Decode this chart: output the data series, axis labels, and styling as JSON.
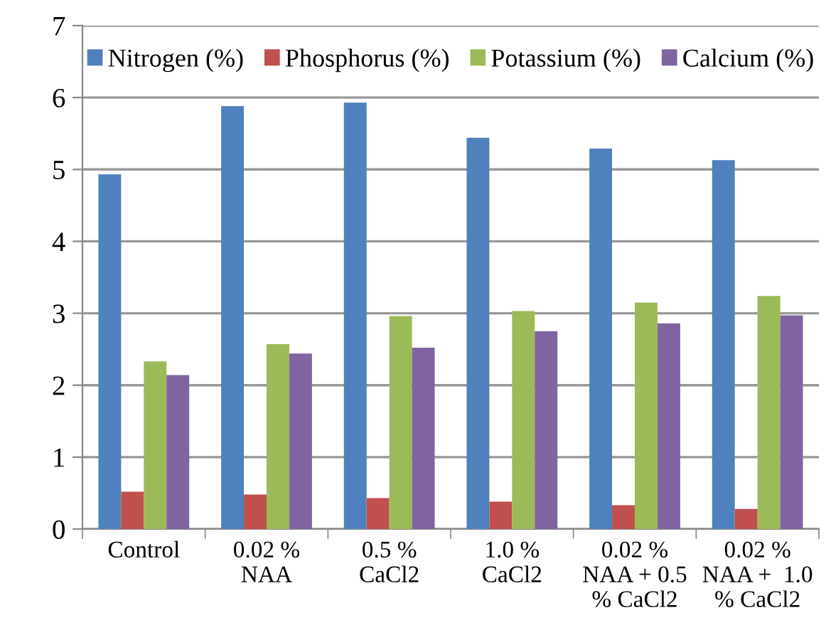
{
  "chart_data": {
    "type": "bar",
    "categories": [
      "Control",
      "0.02 %\nNAA",
      "0.5 %\nCaCl2",
      "1.0 %\nCaCl2",
      "0.02 %\nNAA + 0.5\n% CaCl2",
      "0.02 %\nNAA +  1.0\n% CaCl2"
    ],
    "series": [
      {
        "name": "Nitrogen (%)",
        "color": "#4f81bd",
        "values": [
          4.93,
          5.88,
          5.93,
          5.44,
          5.29,
          5.13
        ]
      },
      {
        "name": "Phosphorus (%)",
        "color": "#c0504d",
        "values": [
          0.52,
          0.48,
          0.43,
          0.38,
          0.33,
          0.28
        ]
      },
      {
        "name": "Potassium (%)",
        "color": "#9bbb59",
        "values": [
          2.33,
          2.57,
          2.96,
          3.03,
          3.15,
          3.24
        ]
      },
      {
        "name": "Calcium (%)",
        "color": "#8064a2",
        "values": [
          2.14,
          2.44,
          2.52,
          2.75,
          2.86,
          2.97
        ]
      }
    ],
    "ylim": [
      0,
      7
    ],
    "yticks": [
      0,
      1,
      2,
      3,
      4,
      5,
      6,
      7
    ],
    "grid": "y",
    "legend": "top"
  }
}
